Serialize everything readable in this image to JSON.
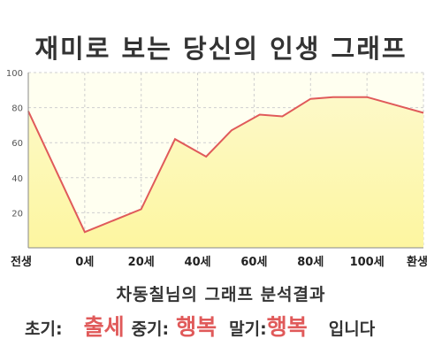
{
  "title": "재미로 보는 당신의 인생 그래프",
  "chart_data": {
    "type": "area",
    "categories": [
      "전생",
      "0세",
      "20세",
      "40세",
      "60세",
      "80세",
      "100세",
      "환생"
    ],
    "y_ticks": [
      "20",
      "40",
      "60",
      "80",
      "100"
    ],
    "ylim": [
      0,
      100
    ],
    "grid": true,
    "colors": {
      "line": "#e05a5a",
      "fill_top": "#fdf9c8",
      "fill_bottom": "#fdf6a0",
      "plot_bg": "#fffff0",
      "grid": "#cfcfcf"
    },
    "points": [
      {
        "x": 0,
        "y": 78
      },
      {
        "x": 1,
        "y": 9
      },
      {
        "x": 2,
        "y": 22
      },
      {
        "x": 2.6,
        "y": 62
      },
      {
        "x": 3.15,
        "y": 52
      },
      {
        "x": 3.6,
        "y": 67
      },
      {
        "x": 4.1,
        "y": 76
      },
      {
        "x": 4.5,
        "y": 75
      },
      {
        "x": 5.0,
        "y": 85
      },
      {
        "x": 5.4,
        "y": 86
      },
      {
        "x": 6.0,
        "y": 86
      },
      {
        "x": 7.0,
        "y": 77
      }
    ]
  },
  "result": {
    "title": "차동칠님의 그래프 분석결과",
    "early_label": "초기:",
    "early_value": "출세",
    "mid_label": "중기:",
    "mid_value": "행복",
    "late_label": "말기:",
    "late_value": "행복",
    "ending": "입니다"
  }
}
